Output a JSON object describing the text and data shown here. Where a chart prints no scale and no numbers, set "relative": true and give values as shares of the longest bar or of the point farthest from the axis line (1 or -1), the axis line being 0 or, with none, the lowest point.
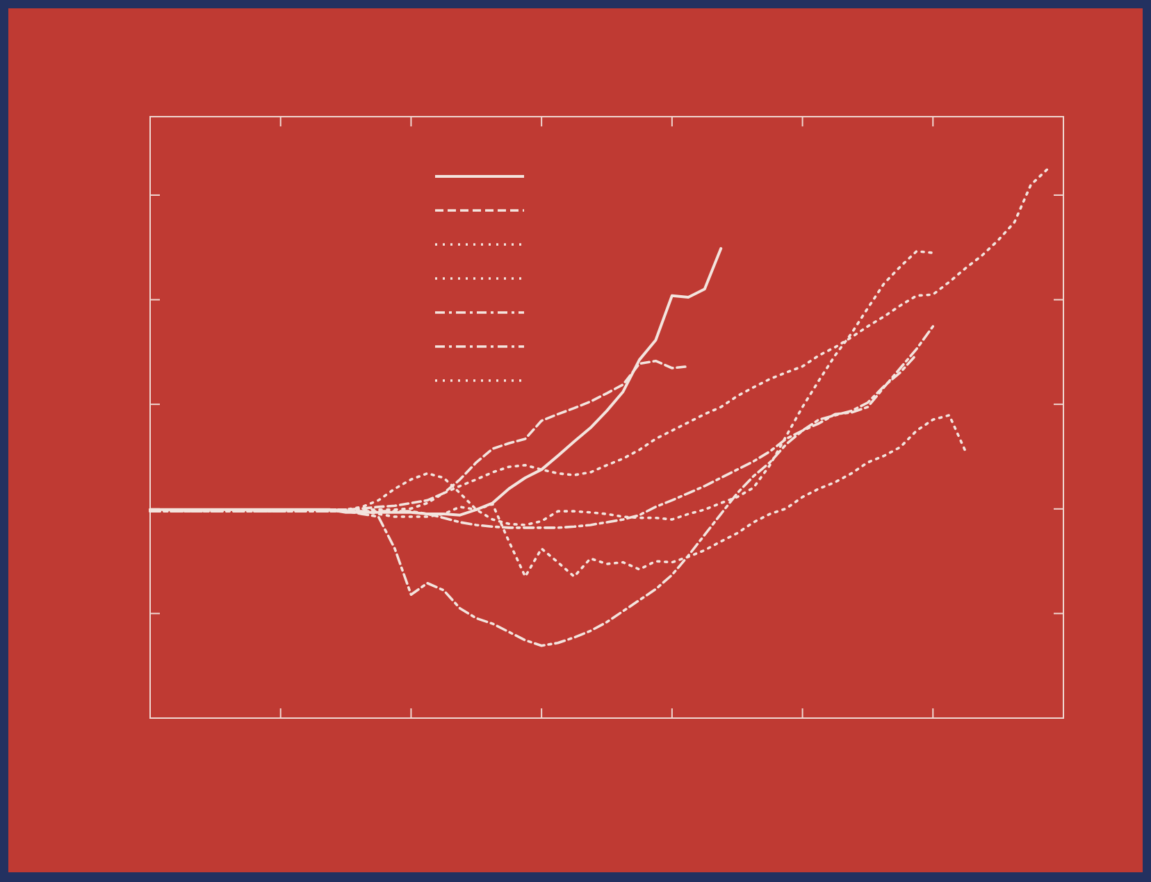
{
  "chart_data": {
    "type": "line",
    "relative": true,
    "grid": false,
    "categories": [
      null,
      null,
      null,
      null,
      null,
      null,
      null,
      null,
      null,
      null,
      null,
      null,
      null,
      null,
      null,
      null,
      null,
      null,
      null,
      null,
      null,
      null,
      null,
      null,
      null,
      null,
      null,
      null,
      null,
      null,
      null,
      null,
      null,
      null,
      null,
      null,
      null,
      null,
      null,
      null,
      null,
      null,
      null,
      null,
      null,
      null,
      null,
      null,
      null,
      null,
      null,
      null,
      null,
      null,
      null,
      null,
      null
    ],
    "series": [
      {
        "color": "#f3e4de",
        "line_style": "solid",
        "values": [
          0.38,
          0.38,
          0.38,
          0.38,
          0.38,
          0.38,
          0.38,
          0.38,
          0.38,
          0.38,
          0.38,
          0.38,
          0.375,
          0.375,
          0.375,
          0.375,
          0.375,
          0.372,
          0.372,
          0.37,
          0.38,
          0.392,
          0.418,
          0.438,
          0.453,
          0.478,
          0.504,
          0.529,
          0.56,
          0.595,
          0.653,
          0.689,
          0.77,
          0.767,
          0.782,
          0.856,
          null,
          null,
          null,
          null,
          null,
          null,
          null,
          null,
          null,
          null,
          null,
          null,
          null,
          null,
          null,
          null,
          null,
          null,
          null,
          null,
          null
        ]
      },
      {
        "color": "#f3e4de",
        "line_style": "dashed",
        "values": [
          0.38,
          0.38,
          0.38,
          0.38,
          0.38,
          0.38,
          0.38,
          0.38,
          0.38,
          0.38,
          0.38,
          0.38,
          0.38,
          0.382,
          0.385,
          0.387,
          0.392,
          0.397,
          0.41,
          0.435,
          0.466,
          0.491,
          0.501,
          0.509,
          0.542,
          0.554,
          0.565,
          0.577,
          0.592,
          0.608,
          0.646,
          0.651,
          0.638,
          0.641,
          null,
          null,
          null,
          null,
          null,
          null,
          null,
          null,
          null,
          null,
          null,
          null,
          null,
          null,
          null,
          null,
          null,
          null,
          null,
          null,
          null,
          null,
          null
        ]
      },
      {
        "color": "#f3e4de",
        "line_style": "dotted",
        "values": [
          0.38,
          0.38,
          0.38,
          0.38,
          0.38,
          0.38,
          0.38,
          0.38,
          0.38,
          0.38,
          0.38,
          0.38,
          0.38,
          0.38,
          0.38,
          0.38,
          0.382,
          0.392,
          0.41,
          0.423,
          0.435,
          0.448,
          0.458,
          0.461,
          0.453,
          0.446,
          0.443,
          0.448,
          0.461,
          0.473,
          0.489,
          0.509,
          0.524,
          0.539,
          0.554,
          0.567,
          0.587,
          0.603,
          0.618,
          0.63,
          0.641,
          0.661,
          0.676,
          0.694,
          0.714,
          0.732,
          0.752,
          0.77,
          0.772,
          0.795,
          0.82,
          0.843,
          0.871,
          0.904,
          0.972,
          1.0,
          null
        ]
      },
      {
        "color": "#f3e4de",
        "line_style": "dotted",
        "values": [
          0.38,
          0.38,
          0.38,
          0.38,
          0.38,
          0.38,
          0.38,
          0.38,
          0.38,
          0.38,
          0.38,
          0.38,
          0.38,
          0.385,
          0.397,
          0.418,
          0.435,
          0.446,
          0.438,
          0.41,
          0.38,
          0.362,
          0.354,
          0.352,
          0.359,
          0.377,
          0.377,
          0.375,
          0.372,
          0.367,
          0.365,
          0.365,
          0.362,
          0.372,
          0.38,
          0.392,
          0.403,
          0.42,
          0.461,
          0.514,
          0.567,
          0.615,
          0.661,
          0.701,
          0.747,
          0.792,
          0.823,
          0.851,
          0.848,
          null,
          null,
          null,
          null,
          null,
          null,
          null,
          null
        ]
      },
      {
        "color": "#f3e4de",
        "line_style": "dashdot",
        "values": [
          0.377,
          0.377,
          0.377,
          0.377,
          0.377,
          0.377,
          0.377,
          0.377,
          0.377,
          0.377,
          0.377,
          0.377,
          0.377,
          0.377,
          0.377,
          0.377,
          0.377,
          0.372,
          0.365,
          0.357,
          0.352,
          0.349,
          0.347,
          0.347,
          0.347,
          0.347,
          0.349,
          0.352,
          0.357,
          0.362,
          0.37,
          0.385,
          0.397,
          0.41,
          0.423,
          0.438,
          0.453,
          0.468,
          0.486,
          0.509,
          0.524,
          0.537,
          0.554,
          0.557,
          0.567,
          0.603,
          0.638,
          0.673,
          0.714,
          null,
          null,
          null,
          null,
          null,
          null,
          null,
          null
        ]
      },
      {
        "color": "#f3e4de",
        "line_style": "dashdot",
        "values": [
          0.377,
          0.377,
          0.377,
          0.377,
          0.377,
          0.377,
          0.377,
          0.377,
          0.377,
          0.377,
          0.377,
          0.377,
          0.377,
          0.372,
          0.367,
          0.309,
          0.225,
          0.246,
          0.233,
          0.2,
          0.182,
          0.172,
          0.157,
          0.142,
          0.132,
          0.137,
          0.147,
          0.159,
          0.175,
          0.195,
          0.215,
          0.235,
          0.261,
          0.296,
          0.334,
          0.372,
          0.41,
          0.441,
          0.466,
          0.499,
          0.524,
          0.544,
          0.552,
          0.56,
          0.575,
          0.605,
          0.63,
          0.663,
          null,
          null,
          null,
          null,
          null,
          null,
          null,
          null,
          null
        ]
      },
      {
        "color": "#f3e4de",
        "line_style": "dotted",
        "values": [
          0.377,
          0.377,
          0.377,
          0.377,
          0.377,
          0.377,
          0.377,
          0.377,
          0.377,
          0.377,
          0.377,
          0.377,
          0.377,
          0.377,
          0.372,
          0.367,
          0.367,
          0.367,
          0.372,
          0.385,
          0.38,
          0.39,
          0.322,
          0.258,
          0.309,
          0.284,
          0.258,
          0.291,
          0.281,
          0.284,
          0.271,
          0.286,
          0.284,
          0.294,
          0.306,
          0.322,
          0.337,
          0.357,
          0.372,
          0.382,
          0.403,
          0.418,
          0.43,
          0.446,
          0.466,
          0.478,
          0.494,
          0.524,
          0.544,
          0.552,
          0.486,
          null,
          null,
          null,
          null,
          null,
          null
        ]
      }
    ]
  }
}
